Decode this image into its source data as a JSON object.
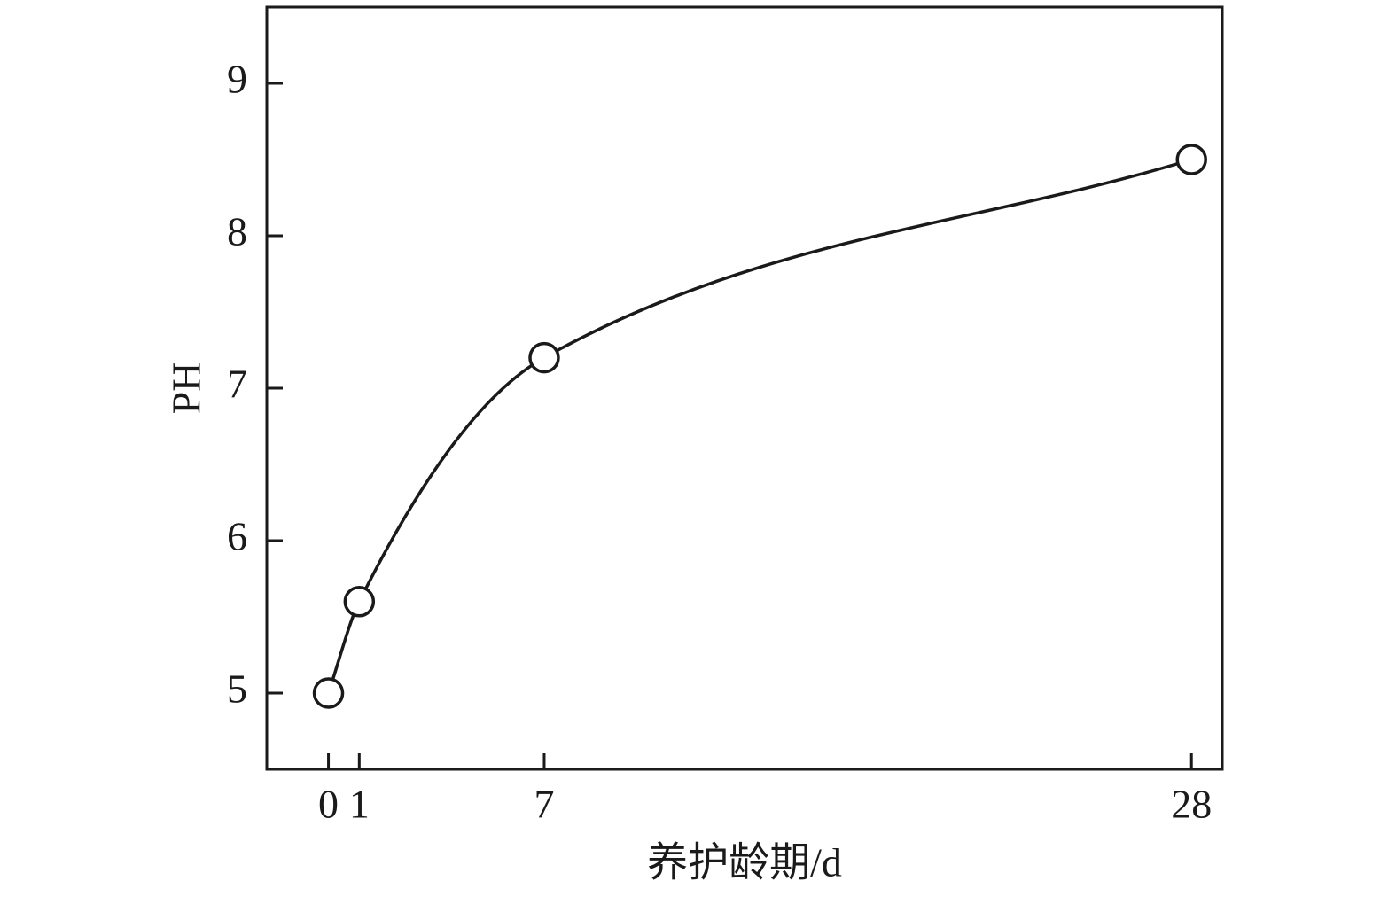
{
  "chart_data": {
    "type": "line",
    "xlabel": "养护龄期/d",
    "ylabel": "PH",
    "x": [
      0,
      1,
      7,
      28
    ],
    "values": [
      5,
      5.6,
      7.2,
      8.5
    ],
    "color": "#1a1a1a",
    "smooth": true,
    "markers": "open-circle",
    "xlim": [
      -2,
      29
    ],
    "xticks": [
      0,
      1,
      7,
      28
    ],
    "ylim": [
      4.5,
      9.5
    ],
    "yticks": [
      5,
      6,
      7,
      8,
      9
    ]
  }
}
